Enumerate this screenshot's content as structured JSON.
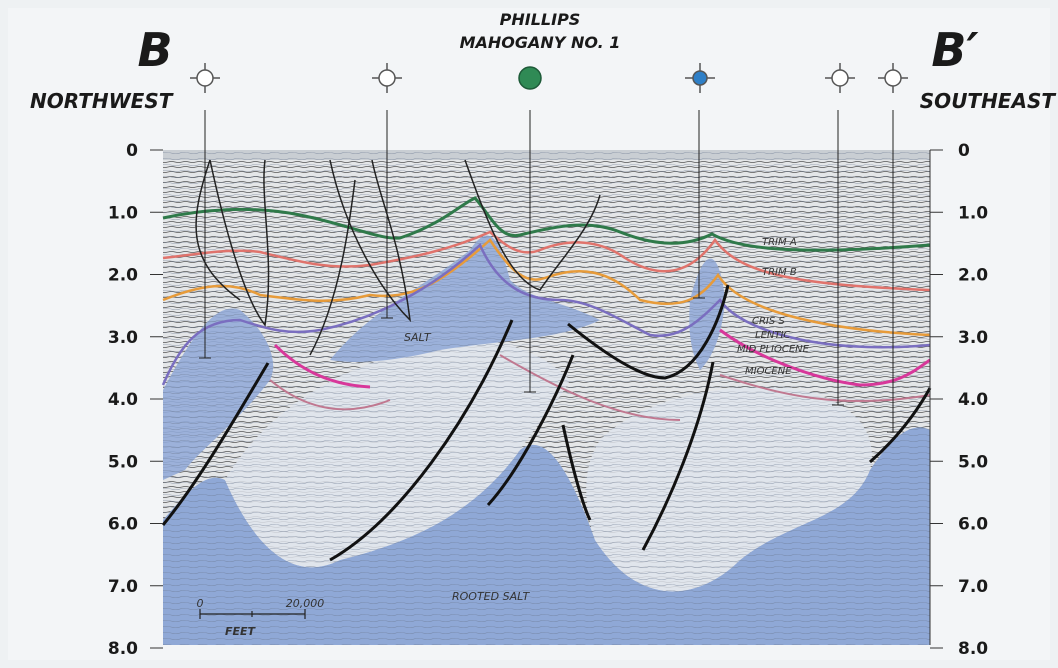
{
  "header": {
    "title_line1": "PHILLIPS",
    "title_line2": "MAHOGANY NO. 1"
  },
  "left": {
    "label": "B",
    "direction": "NORTHWEST"
  },
  "right": {
    "label": "B′",
    "direction": "SOUTHEAST"
  },
  "depth_axis": {
    "labels": [
      "0",
      "1.0",
      "2.0",
      "3.0",
      "4.0",
      "5.0",
      "6.0",
      "7.0",
      "8.0"
    ]
  },
  "horizons": [
    "TRIM A",
    "TRIM B",
    "CRIS S",
    "LENTIC",
    "MID PLIOCENE",
    "MIOCENE"
  ],
  "annotations": {
    "salt": "SALT",
    "rooted_salt": "ROOTED SALT"
  },
  "scale_bar": {
    "start": "0",
    "end": "20,000",
    "unit": "FEET"
  }
}
